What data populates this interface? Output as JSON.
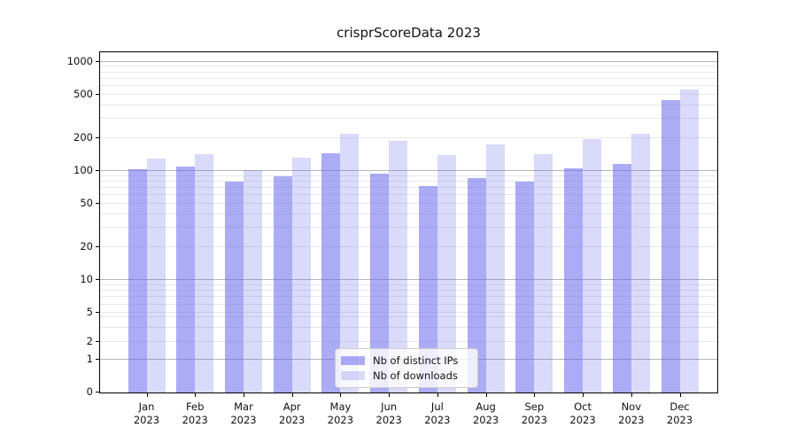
{
  "title": "crisprScoreData 2023",
  "chart_data": {
    "type": "bar",
    "title": "crisprScoreData 2023",
    "categories": [
      "Jan",
      "Feb",
      "Mar",
      "Apr",
      "May",
      "Jun",
      "Jul",
      "Aug",
      "Sep",
      "Oct",
      "Nov",
      "Dec"
    ],
    "year": "2023",
    "series": [
      {
        "name": "Nb of distinct IPs",
        "key": "distinct_ips",
        "values": [
          102,
          107,
          78,
          88,
          143,
          92,
          71,
          85,
          79,
          103,
          114,
          435
        ]
      },
      {
        "name": "Nb of downloads",
        "key": "downloads",
        "values": [
          127,
          140,
          100,
          130,
          214,
          185,
          138,
          171,
          139,
          192,
          215,
          545
        ]
      }
    ],
    "xlabel": "",
    "ylabel": "",
    "yscale": "symlog",
    "yticks": [
      0,
      1,
      2,
      5,
      10,
      20,
      50,
      100,
      200,
      500,
      1000
    ],
    "ylim": [
      0,
      1160
    ],
    "grid": "horizontal",
    "legend_position": "bottom-center-inside",
    "colors": {
      "base": "#6666ee",
      "distinct_ips": "rgba(102,102,238,0.55)",
      "downloads": "rgba(102,102,238,0.24)",
      "grid_major": "#b5b5b5",
      "grid_minor": "#e9e9e9",
      "axis": "#000000"
    }
  }
}
